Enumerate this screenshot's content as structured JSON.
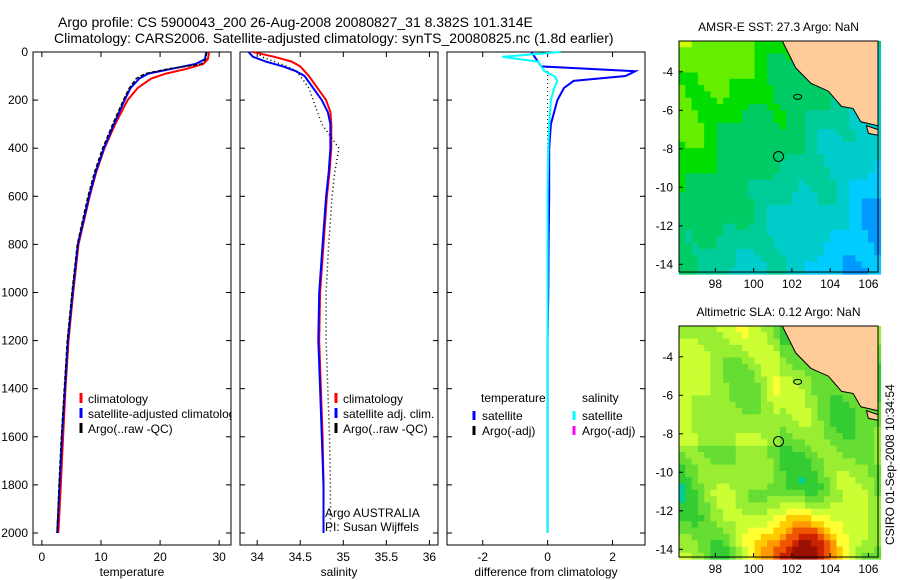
{
  "title_line1": "Argo profile: CS 5900043_200 26-Aug-2008 20080827_31 8.382S 101.314E",
  "title_line2": "Climatology: CARS2006. Satellite-adjusted climatology: synTS_20080825.nc (1.8d earlier)",
  "side_stamp": "CSIRO 01-Sep-2008 10:34:54",
  "colors": {
    "climatology": "#ff0000",
    "satellite": "#0000ff",
    "argo": "#000000",
    "sal_satellite": "#00ffff",
    "sal_argo": "#ff00ff",
    "land": "#ffcc99"
  },
  "chart_data": [
    {
      "type": "line",
      "xlabel": "temperature",
      "ylabel": "",
      "xlim": [
        -1.5,
        32
      ],
      "ylim": [
        2050,
        0
      ],
      "xticks": [
        0,
        10,
        20,
        30
      ],
      "yticks": [
        0,
        200,
        400,
        600,
        800,
        1000,
        1200,
        1400,
        1600,
        1800,
        2000
      ],
      "legend": [
        "climatology",
        "satellite-adjusted climatology",
        "Argo(..raw -QC)"
      ],
      "legend_position": "lower-center",
      "depth": [
        0,
        30,
        50,
        70,
        90,
        110,
        150,
        200,
        300,
        400,
        500,
        600,
        800,
        1000,
        1200,
        1400,
        1600,
        1800,
        2000
      ],
      "series": [
        {
          "name": "climatology",
          "values": [
            28.3,
            28.1,
            27.3,
            24.5,
            21.0,
            18.5,
            16.2,
            14.5,
            12.4,
            10.6,
            9.2,
            8.1,
            6.2,
            5.3,
            4.5,
            4.0,
            3.6,
            3.2,
            2.8
          ]
        },
        {
          "name": "satellite-adjusted climatology",
          "values": [
            27.8,
            27.6,
            26.0,
            22.0,
            18.0,
            16.5,
            15.0,
            14.0,
            12.2,
            10.5,
            9.1,
            8.0,
            6.1,
            5.2,
            4.4,
            3.9,
            3.4,
            3.0,
            2.6
          ]
        },
        {
          "name": "Argo(..raw -QC)",
          "values": [
            27.9,
            27.7,
            27.0,
            21.5,
            17.5,
            16.0,
            14.8,
            13.8,
            12.0,
            10.3,
            8.9,
            7.8,
            6.0,
            5.1,
            4.3,
            3.8,
            3.3,
            2.9,
            2.6
          ]
        }
      ]
    },
    {
      "type": "line",
      "xlabel": "salinity",
      "xlim": [
        33.8,
        36.1
      ],
      "ylim": [
        2050,
        0
      ],
      "xticks": [
        34,
        34.5,
        35,
        35.5,
        36
      ],
      "legend": [
        "climatology",
        "satellite adj. clim.",
        "Argo(..raw -QC)"
      ],
      "legend_position": "lower-center",
      "annotations": [
        "Argo AUSTRALIA",
        "PI: Susan Wijffels"
      ],
      "depth": [
        0,
        20,
        40,
        60,
        80,
        100,
        150,
        200,
        250,
        300,
        400,
        500,
        600,
        800,
        1000,
        1200,
        1400,
        1600,
        1800,
        2000
      ],
      "series": [
        {
          "name": "climatology",
          "values": [
            33.95,
            34.2,
            34.4,
            34.5,
            34.55,
            34.6,
            34.7,
            34.8,
            34.85,
            34.86,
            34.86,
            34.84,
            34.81,
            34.77,
            34.73,
            34.72,
            34.74,
            34.76,
            34.77,
            34.77
          ]
        },
        {
          "name": "satellite adj. clim.",
          "values": [
            33.9,
            33.95,
            34.1,
            34.3,
            34.45,
            34.55,
            34.65,
            34.75,
            34.82,
            34.85,
            34.85,
            34.83,
            34.8,
            34.76,
            34.72,
            34.71,
            34.73,
            34.75,
            34.77,
            34.77
          ]
        },
        {
          "name": "Argo(..raw -QC)",
          "values": [
            34.0,
            34.05,
            34.2,
            34.35,
            34.45,
            34.5,
            34.6,
            34.65,
            34.7,
            34.75,
            34.95,
            34.9,
            34.87,
            34.83,
            34.8,
            34.8,
            34.82,
            34.84,
            34.85,
            34.85
          ]
        }
      ]
    },
    {
      "type": "line",
      "xlabel": "difference from climatology",
      "xlim": [
        -3.1,
        3.0
      ],
      "ylim": [
        2050,
        0
      ],
      "xticks": [
        -2,
        0,
        2
      ],
      "legend_groups": {
        "temperature": [
          "satellite",
          "Argo(-adj)"
        ],
        "salinity": [
          "satellite",
          "Argo(-adj)"
        ]
      },
      "legend_headers": [
        "temperature",
        "salinity"
      ],
      "legend_labels": [
        "satellite",
        "Argo(-adj)",
        "satellite",
        "Argo(-adj)"
      ],
      "depth": [
        0,
        20,
        40,
        60,
        80,
        100,
        120,
        150,
        200,
        300,
        400,
        600,
        800,
        1000,
        1200,
        1500,
        2000
      ],
      "series": [
        {
          "name": "temperature satellite",
          "values": [
            -0.5,
            -0.4,
            -0.3,
            -0.2,
            2.7,
            2.4,
            0.8,
            0.5,
            0.3,
            0.1,
            0.05,
            0.05,
            0.03,
            0.02,
            0.0,
            0.0,
            0.0
          ]
        },
        {
          "name": "salinity satellite",
          "values": [
            0.4,
            -1.4,
            -0.3,
            -0.2,
            -0.1,
            0.2,
            0.3,
            0.2,
            0.1,
            0.05,
            0.02,
            0.0,
            0.0,
            0.0,
            0.0,
            0.0,
            0.0
          ]
        }
      ],
      "reference": {
        "name": "zero line",
        "value": 0
      }
    },
    {
      "type": "heatmap",
      "title": "AMSR-E SST: 27.3 Argo: NaN",
      "xlim": [
        96.1,
        106.5
      ],
      "ylim": [
        -14.4,
        -2.4
      ],
      "xticks": [
        98,
        100,
        102,
        104,
        106
      ],
      "yticks": [
        -4,
        -6,
        -8,
        -10,
        -12,
        -14
      ],
      "marker": {
        "lon": 101.3,
        "lat": -8.4
      }
    },
    {
      "type": "heatmap",
      "title": "Altimetric SLA: 0.12 Argo: NaN",
      "xlim": [
        96.1,
        106.5
      ],
      "ylim": [
        -14.4,
        -2.4
      ],
      "xticks": [
        98,
        100,
        102,
        104,
        106
      ],
      "yticks": [
        -4,
        -6,
        -8,
        -10,
        -12,
        -14
      ],
      "marker": {
        "lon": 101.3,
        "lat": -8.4
      }
    }
  ]
}
